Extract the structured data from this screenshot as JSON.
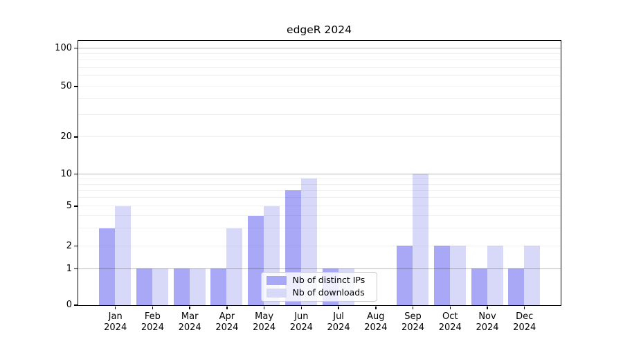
{
  "chart_data": {
    "type": "bar",
    "title": "edgeR 2024",
    "categories": [
      "Jan",
      "Feb",
      "Mar",
      "Apr",
      "May",
      "Jun",
      "Jul",
      "Aug",
      "Sep",
      "Oct",
      "Nov",
      "Dec"
    ],
    "year_label": "2024",
    "series": [
      {
        "name": "Nb of distinct IPs",
        "color": "#a8a8f7",
        "values": [
          3,
          1,
          1,
          1,
          4,
          7,
          1,
          0,
          2,
          2,
          1,
          1
        ]
      },
      {
        "name": "Nb of downloads",
        "color": "#d8d8f9",
        "values": [
          5,
          1,
          1,
          3,
          5,
          9,
          1,
          0,
          10,
          2,
          2,
          2
        ]
      }
    ],
    "y_axis": {
      "ticks": [
        0,
        1,
        2,
        5,
        10,
        20,
        50,
        100
      ],
      "minor_gridlines": [
        3,
        4,
        6,
        7,
        8,
        9,
        30,
        40,
        60,
        70,
        80,
        90
      ],
      "major_gridlines": [
        1,
        10,
        100
      ],
      "scale": "log-like",
      "range": [
        0,
        100
      ]
    },
    "x_axis": {
      "label_lines": 2
    },
    "legend": {
      "position": "inside-bottom-center"
    },
    "grid": true
  }
}
